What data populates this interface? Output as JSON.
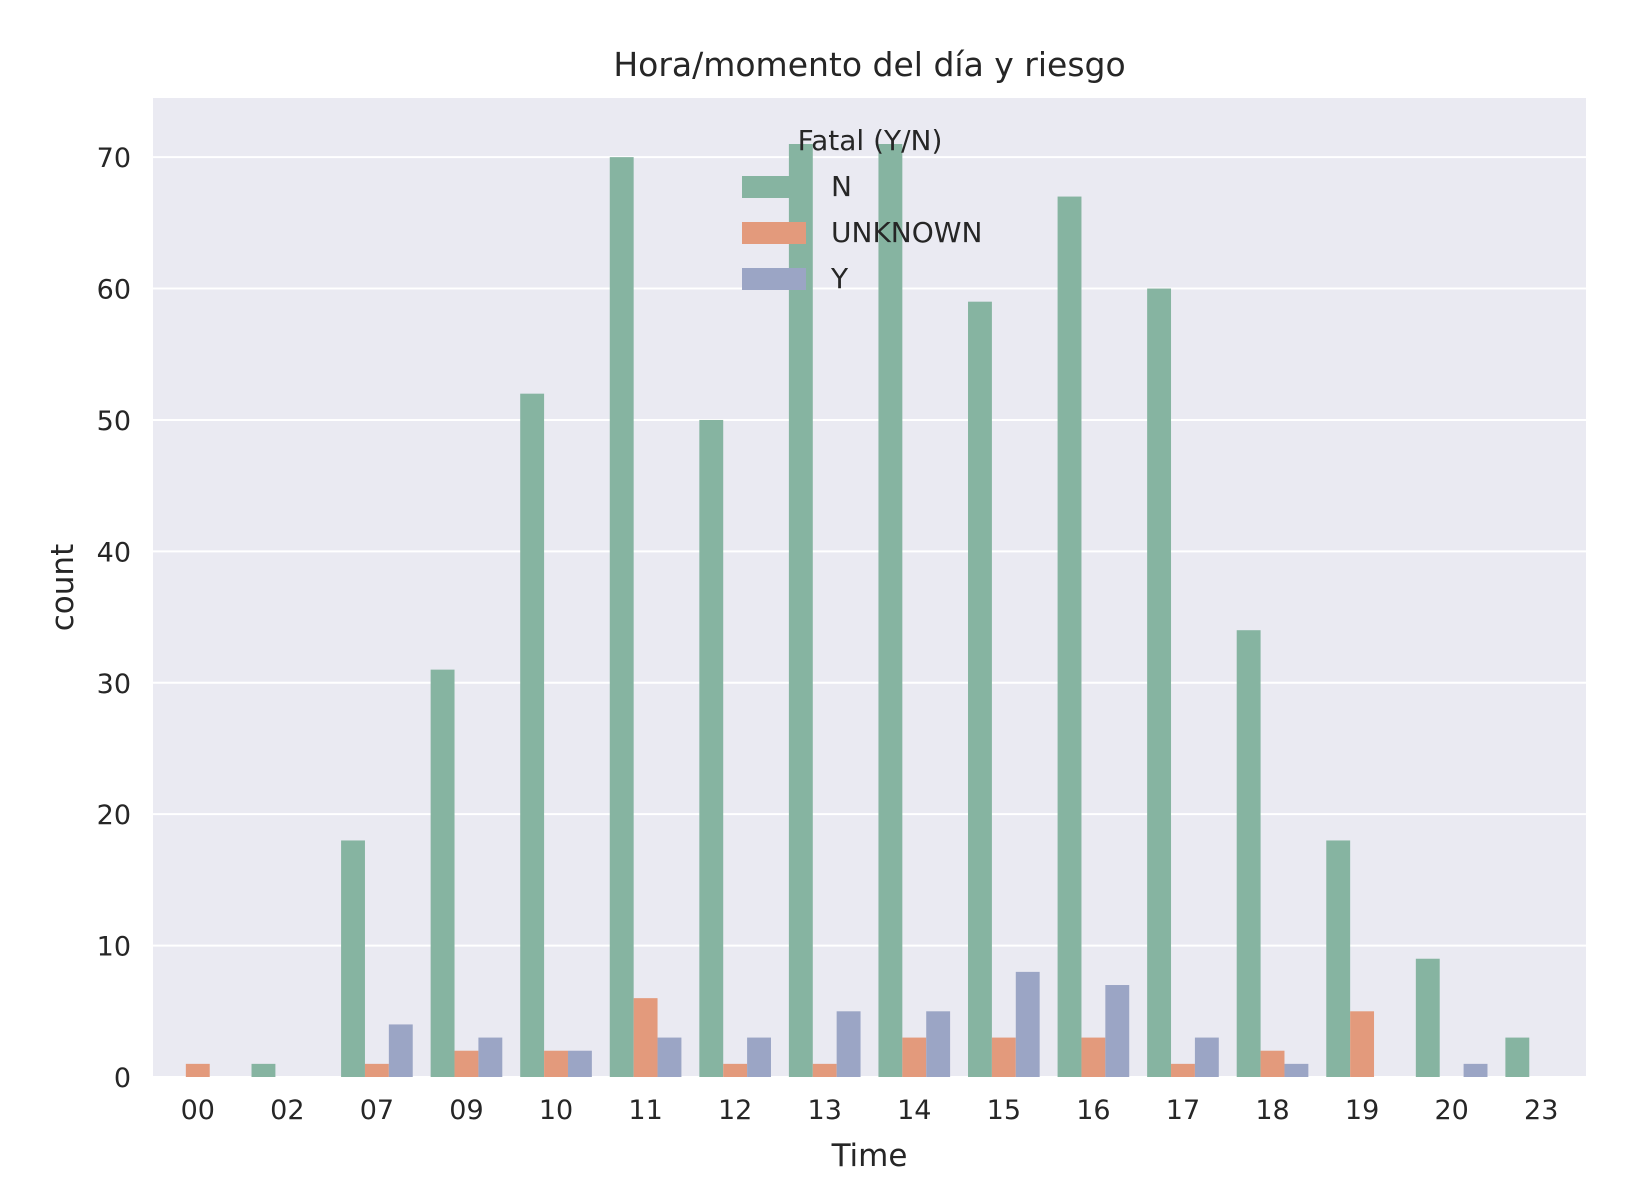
{
  "chart_data": {
    "type": "bar",
    "title": "Hora/momento del día y riesgo",
    "xlabel": "Time",
    "ylabel": "count",
    "categories": [
      "00",
      "02",
      "07",
      "09",
      "10",
      "11",
      "12",
      "13",
      "14",
      "15",
      "16",
      "17",
      "18",
      "19",
      "20",
      "23"
    ],
    "ylim": [
      0,
      74.5
    ],
    "yticks": [
      0,
      10,
      20,
      30,
      40,
      50,
      60,
      70
    ],
    "grid": true,
    "legend": {
      "title": "Fatal (Y/N)",
      "placement": "top-center"
    },
    "series": [
      {
        "name": "N",
        "color": "#86b4a1",
        "values": [
          0,
          1,
          18,
          31,
          52,
          70,
          50,
          71,
          71,
          59,
          67,
          60,
          34,
          18,
          9,
          3
        ]
      },
      {
        "name": "UNKNOWN",
        "color": "#e39a7c",
        "values": [
          1,
          0,
          1,
          2,
          2,
          6,
          1,
          1,
          3,
          3,
          3,
          1,
          2,
          5,
          0,
          0
        ]
      },
      {
        "name": "Y",
        "color": "#9ba5c5",
        "values": [
          0,
          0,
          4,
          3,
          2,
          3,
          3,
          5,
          5,
          8,
          7,
          3,
          1,
          0,
          1,
          0
        ]
      }
    ],
    "background": "#eaeaf2",
    "gridcolor": "#ffffff"
  }
}
